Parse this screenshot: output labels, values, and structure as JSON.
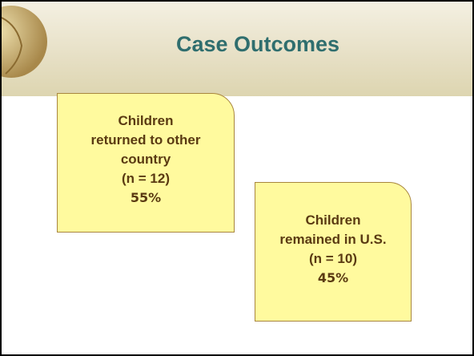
{
  "title": "Case Outcomes",
  "boxes": [
    {
      "lines": [
        "Children",
        "returned to other",
        "country",
        "(n = 12)"
      ],
      "percent": "55%"
    },
    {
      "lines": [
        "Children",
        "remained in U.S.",
        "(n = 10)"
      ],
      "percent": "45%"
    }
  ]
}
